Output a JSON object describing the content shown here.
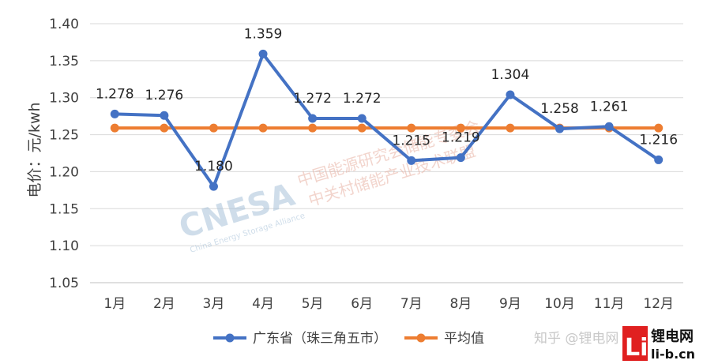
{
  "chart_data": {
    "type": "line",
    "ylabel": "电价：元/kwh",
    "ylim": [
      1.05,
      1.4
    ],
    "yticks": [
      "1.05",
      "1.10",
      "1.15",
      "1.20",
      "1.25",
      "1.30",
      "1.35",
      "1.40"
    ],
    "categories": [
      "1月",
      "2月",
      "3月",
      "4月",
      "5月",
      "6月",
      "7月",
      "8月",
      "9月",
      "10月",
      "11月",
      "12月"
    ],
    "grid": true,
    "legend_position": "bottom",
    "series": [
      {
        "name": "广东省（珠三角五市）",
        "color": "#4472c4",
        "values": [
          1.278,
          1.276,
          1.18,
          1.359,
          1.272,
          1.272,
          1.215,
          1.219,
          1.304,
          1.258,
          1.261,
          1.216
        ],
        "labels": [
          "1.278",
          "1.276",
          "1.180",
          "1.359",
          "1.272",
          "1.272",
          "1.215",
          "1.219",
          "1.304",
          "1.258",
          "1.261",
          "1.216"
        ]
      },
      {
        "name": "平均值",
        "color": "#ed7d31",
        "values": [
          1.259,
          1.259,
          1.259,
          1.259,
          1.259,
          1.259,
          1.259,
          1.259,
          1.259,
          1.259,
          1.259,
          1.259
        ]
      }
    ]
  },
  "watermark": {
    "logo": "CNESA",
    "cn_line1": "中国能源研究会储能专委会",
    "cn_line2": "中关村储能产业技术联盟",
    "en_line": "China Energy Storage Alliance"
  },
  "credit": {
    "zhihu": "知乎 @锂电网",
    "logo_mark": "Li",
    "site_name": "锂电网",
    "site_url": "li-b.cn"
  }
}
